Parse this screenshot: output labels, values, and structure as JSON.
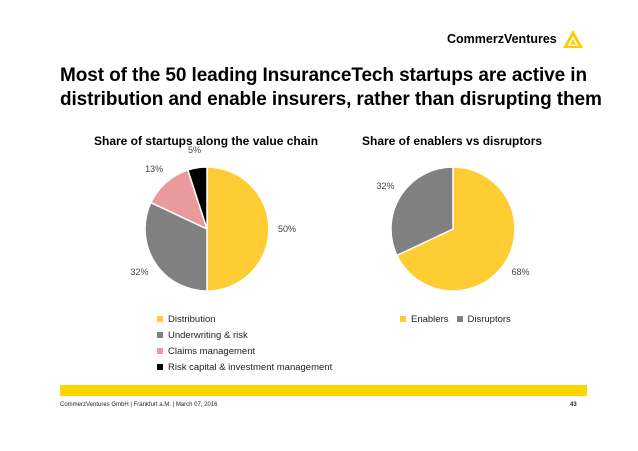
{
  "header": {
    "brand": "CommerzVentures",
    "headline_line1": "Most of the 50 leading InsuranceTech startups are active in",
    "headline_line2": "distribution and enable insurers, rather than disrupting them"
  },
  "colors": {
    "yellow": "#ffcc33",
    "gray": "#808080",
    "pink": "#e89a9c",
    "black": "#000000",
    "accent_bar": "#ffd500"
  },
  "chart_data": [
    {
      "type": "pie",
      "title": "Share of startups along the value chain",
      "categories": [
        "Distribution",
        "Underwriting & risk",
        "Claims management",
        "Risk capital & investment management"
      ],
      "values": [
        50,
        32,
        13,
        5
      ],
      "labels": [
        "50%",
        "32%",
        "13%",
        "5%"
      ],
      "colors": [
        "#ffcc33",
        "#808080",
        "#e89a9c",
        "#000000"
      ],
      "legend_position": "bottom"
    },
    {
      "type": "pie",
      "title": "Share of enablers vs disruptors",
      "categories": [
        "Enablers",
        "Disruptors"
      ],
      "values": [
        68,
        32
      ],
      "labels": [
        "68%",
        "32%"
      ],
      "colors": [
        "#ffcc33",
        "#808080"
      ],
      "legend_position": "bottom"
    }
  ],
  "footer": {
    "text": "CommerzVentures GmbH  |  Frankfurt a.M. | March 07, 2016",
    "page": "43"
  }
}
